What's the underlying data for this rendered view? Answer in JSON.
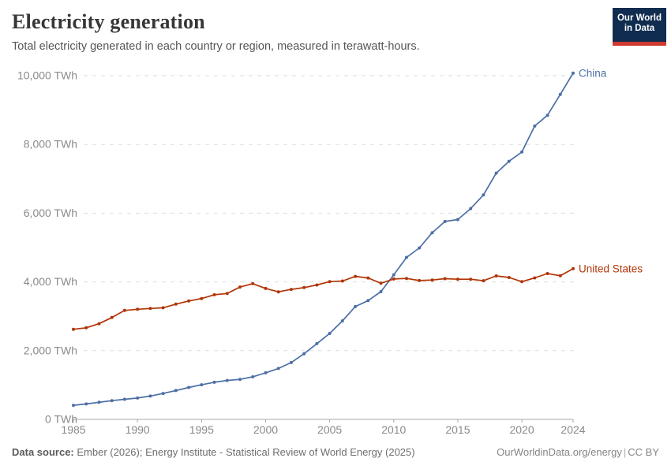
{
  "header": {
    "title": "Electricity generation",
    "subtitle": "Total electricity generated in each country or region, measured in terawatt-hours.",
    "logo": {
      "line1": "Our World",
      "line2": "in Data",
      "bg_color": "#102d50",
      "bar_color": "#d0392f"
    }
  },
  "chart_data": {
    "type": "line",
    "title": "Electricity generation",
    "unit": "TWh",
    "grid": "horizontal-dashed",
    "legend_position": "end-of-line-labels",
    "xlim": [
      1985,
      2024
    ],
    "ylim": [
      0,
      10000
    ],
    "xticks": [
      1985,
      1990,
      1995,
      2000,
      2005,
      2010,
      2015,
      2020,
      2024
    ],
    "yticks": [
      0,
      2000,
      4000,
      6000,
      8000,
      10000
    ],
    "ytick_suffix": " TWh",
    "x": [
      1985,
      1986,
      1987,
      1988,
      1989,
      1990,
      1991,
      1992,
      1993,
      1994,
      1995,
      1996,
      1997,
      1998,
      1999,
      2000,
      2001,
      2002,
      2003,
      2004,
      2005,
      2006,
      2007,
      2008,
      2009,
      2010,
      2011,
      2012,
      2013,
      2014,
      2015,
      2016,
      2017,
      2018,
      2019,
      2020,
      2021,
      2022,
      2023,
      2024
    ],
    "series": [
      {
        "name": "China",
        "color": "#4C6FA5",
        "values": [
          411,
          450,
          497,
          545,
          585,
          621,
          678,
          754,
          839,
          928,
          1007,
          1081,
          1134,
          1166,
          1239,
          1356,
          1481,
          1654,
          1911,
          2203,
          2500,
          2866,
          3282,
          3457,
          3715,
          4207,
          4713,
          4988,
          5432,
          5760,
          5815,
          6133,
          6529,
          7166,
          7509,
          7779,
          8534,
          8849,
          9456,
          10073
        ]
      },
      {
        "name": "United States",
        "color": "#B13507",
        "values": [
          2621,
          2666,
          2784,
          2964,
          3170,
          3203,
          3226,
          3247,
          3353,
          3444,
          3517,
          3625,
          3663,
          3850,
          3950,
          3810,
          3710,
          3782,
          3835,
          3910,
          4010,
          4025,
          4160,
          4115,
          3960,
          4085,
          4100,
          4040,
          4055,
          4094,
          4078,
          4077,
          4034,
          4174,
          4128,
          4007,
          4116,
          4243,
          4178,
          4386
        ]
      }
    ],
    "colors": {
      "gridline": "#dddddd",
      "axis": "#a8a8a8",
      "tick_label": "#8a8a8a"
    }
  },
  "footer": {
    "source_label": "Data source:",
    "source_text": "Ember (2026); Energy Institute - Statistical Review of World Energy (2025)",
    "url": "OurWorldinData.org/energy",
    "separator": "|",
    "license": "CC BY"
  }
}
